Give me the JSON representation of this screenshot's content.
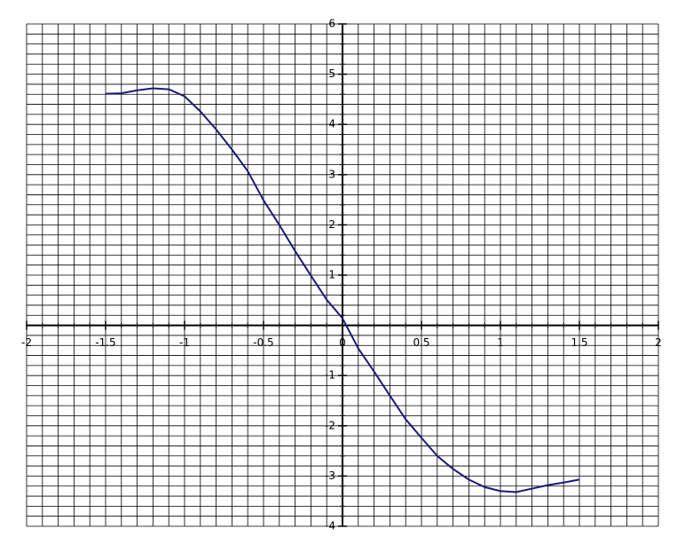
{
  "chart_data": {
    "type": "line",
    "x": [
      -1.5,
      -1.4,
      -1.3,
      -1.2,
      -1.1,
      -1,
      -0.9,
      -0.8,
      -0.7,
      -0.6,
      -0.5,
      -0.4,
      -0.3,
      -0.2,
      -0.1,
      0,
      0.1,
      0.2,
      0.3,
      0.4,
      0.5,
      0.6,
      0.7,
      0.8,
      0.9,
      1,
      1.1,
      1.2,
      1.3,
      1.4,
      1.5
    ],
    "series": [
      {
        "color": "#1a1a7a",
        "values": [
          4.61,
          4.62,
          4.68,
          4.72,
          4.7,
          4.56,
          4.26,
          3.9,
          3.5,
          3.07,
          2.49,
          2.0,
          1.48,
          0.99,
          0.51,
          0.14,
          -0.46,
          -0.92,
          -1.4,
          -1.87,
          -2.24,
          -2.6,
          -2.86,
          -3.07,
          -3.22,
          -3.3,
          -3.32,
          -3.25,
          -3.18,
          -3.13,
          -3.07
        ]
      }
    ],
    "xlim": [
      -2,
      2
    ],
    "ylim": [
      -4,
      6
    ],
    "xticks": [
      -2,
      -1.5,
      -1,
      -0.5,
      0,
      0.5,
      1,
      1.5,
      2
    ],
    "yticks": [
      -4,
      -3,
      -2,
      -1,
      1,
      2,
      3,
      4,
      5,
      6
    ],
    "grid": true
  }
}
